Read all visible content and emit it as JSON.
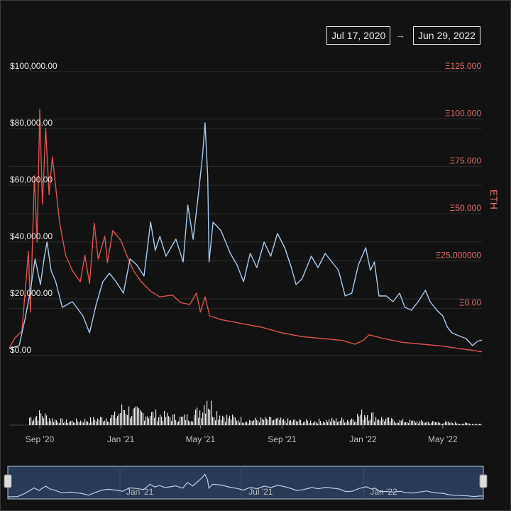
{
  "date_range": {
    "start": "Jul 17, 2020",
    "arrow": "→",
    "end": "Jun 29, 2022"
  },
  "colors": {
    "background": "#121212",
    "usd_line": "#a9c9ee",
    "eth_line": "#d9534f",
    "eth_axis_text": "#e06c6c",
    "volume": "#e8e8e8",
    "grid": "#2c2c2c"
  },
  "chart_data": {
    "type": "line",
    "title": "",
    "x_ticks": [
      "Sep '20",
      "Jan '21",
      "May '21",
      "Sep '21",
      "Jan '22",
      "May '22"
    ],
    "x_tick_dates": [
      "2020-09-01",
      "2021-01-01",
      "2021-05-01",
      "2021-09-01",
      "2022-01-01",
      "2022-05-01"
    ],
    "navigator_ticks": [
      "Jan '21",
      "Jul '21",
      "Jan '22"
    ],
    "navigator_tick_dates": [
      "2021-01-01",
      "2021-07-01",
      "2022-01-01"
    ],
    "xlim": [
      "2020-07-17",
      "2022-06-29"
    ],
    "left_axis": {
      "ticks": [
        "$0.00",
        "$20,000.00",
        "$40,000.00",
        "$60,000.00",
        "$80,000.00",
        "$100,000.00"
      ],
      "tick_values": [
        0,
        20000,
        40000,
        60000,
        80000,
        100000
      ],
      "ylim": [
        0,
        100000
      ]
    },
    "right_axis": {
      "label": "ETH",
      "ticks": [
        "Ξ0.00",
        "Ξ25.000000",
        "Ξ50.000",
        "Ξ75.000",
        "Ξ100.000",
        "Ξ125.000"
      ],
      "tick_values": [
        0,
        25,
        50,
        75,
        100,
        125
      ],
      "ylim": [
        -25,
        125
      ]
    },
    "series": [
      {
        "axis": "left",
        "points": [
          [
            "2020-07-17",
            2500
          ],
          [
            "2020-08-01",
            3500
          ],
          [
            "2020-08-10",
            13000
          ],
          [
            "2020-08-18",
            23000
          ],
          [
            "2020-08-25",
            34000
          ],
          [
            "2020-09-02",
            25000
          ],
          [
            "2020-09-08",
            35000
          ],
          [
            "2020-09-12",
            40000
          ],
          [
            "2020-09-18",
            30000
          ],
          [
            "2020-09-25",
            26000
          ],
          [
            "2020-10-05",
            17000
          ],
          [
            "2020-10-20",
            19000
          ],
          [
            "2020-11-05",
            14000
          ],
          [
            "2020-11-15",
            8000
          ],
          [
            "2020-11-25",
            18000
          ],
          [
            "2020-12-05",
            26000
          ],
          [
            "2020-12-15",
            29000
          ],
          [
            "2020-12-25",
            26000
          ],
          [
            "2021-01-05",
            22000
          ],
          [
            "2021-01-15",
            34000
          ],
          [
            "2021-01-25",
            32000
          ],
          [
            "2021-02-05",
            28000
          ],
          [
            "2021-02-15",
            47000
          ],
          [
            "2021-02-22",
            37000
          ],
          [
            "2021-03-01",
            42000
          ],
          [
            "2021-03-10",
            35000
          ],
          [
            "2021-03-25",
            41000
          ],
          [
            "2021-04-05",
            33000
          ],
          [
            "2021-04-12",
            53000
          ],
          [
            "2021-04-20",
            41000
          ],
          [
            "2021-04-27",
            55000
          ],
          [
            "2021-05-04",
            70000
          ],
          [
            "2021-05-08",
            82000
          ],
          [
            "2021-05-12",
            63000
          ],
          [
            "2021-05-14",
            33000
          ],
          [
            "2021-05-20",
            47000
          ],
          [
            "2021-06-01",
            44000
          ],
          [
            "2021-06-15",
            36000
          ],
          [
            "2021-06-25",
            32000
          ],
          [
            "2021-07-05",
            26000
          ],
          [
            "2021-07-15",
            36000
          ],
          [
            "2021-07-25",
            31000
          ],
          [
            "2021-08-05",
            40000
          ],
          [
            "2021-08-15",
            35000
          ],
          [
            "2021-08-25",
            43000
          ],
          [
            "2021-09-05",
            38000
          ],
          [
            "2021-09-15",
            31000
          ],
          [
            "2021-09-22",
            25000
          ],
          [
            "2021-10-01",
            27000
          ],
          [
            "2021-10-15",
            35000
          ],
          [
            "2021-10-25",
            31000
          ],
          [
            "2021-11-05",
            36000
          ],
          [
            "2021-11-15",
            33000
          ],
          [
            "2021-11-25",
            30000
          ],
          [
            "2021-12-05",
            21000
          ],
          [
            "2021-12-15",
            22000
          ],
          [
            "2021-12-25",
            32000
          ],
          [
            "2022-01-05",
            38000
          ],
          [
            "2022-01-12",
            30000
          ],
          [
            "2022-01-18",
            33000
          ],
          [
            "2022-01-25",
            21000
          ],
          [
            "2022-02-05",
            21000
          ],
          [
            "2022-02-15",
            19000
          ],
          [
            "2022-02-25",
            22000
          ],
          [
            "2022-03-05",
            17000
          ],
          [
            "2022-03-15",
            16000
          ],
          [
            "2022-03-25",
            19000
          ],
          [
            "2022-04-05",
            23000
          ],
          [
            "2022-04-12",
            19000
          ],
          [
            "2022-04-22",
            16000
          ],
          [
            "2022-05-01",
            14000
          ],
          [
            "2022-05-08",
            10000
          ],
          [
            "2022-05-15",
            8000
          ],
          [
            "2022-05-25",
            7000
          ],
          [
            "2022-06-05",
            6000
          ],
          [
            "2022-06-15",
            3500
          ],
          [
            "2022-06-22",
            5000
          ],
          [
            "2022-06-29",
            5500
          ]
        ]
      },
      {
        "axis": "right",
        "points": [
          [
            "2020-07-17",
            -21
          ],
          [
            "2020-07-25",
            -16
          ],
          [
            "2020-08-05",
            -12
          ],
          [
            "2020-08-15",
            30
          ],
          [
            "2020-08-18",
            -2
          ],
          [
            "2020-08-24",
            70
          ],
          [
            "2020-08-28",
            35
          ],
          [
            "2020-09-01",
            105
          ],
          [
            "2020-09-05",
            55
          ],
          [
            "2020-09-10",
            95
          ],
          [
            "2020-09-15",
            60
          ],
          [
            "2020-09-20",
            80
          ],
          [
            "2020-10-01",
            45
          ],
          [
            "2020-10-10",
            28
          ],
          [
            "2020-10-20",
            20
          ],
          [
            "2020-11-01",
            14
          ],
          [
            "2020-11-08",
            28
          ],
          [
            "2020-11-15",
            13
          ],
          [
            "2020-11-22",
            45
          ],
          [
            "2020-11-28",
            26
          ],
          [
            "2020-12-08",
            38
          ],
          [
            "2020-12-12",
            24
          ],
          [
            "2020-12-20",
            41
          ],
          [
            "2021-01-01",
            36
          ],
          [
            "2021-01-10",
            28
          ],
          [
            "2021-01-20",
            20
          ],
          [
            "2021-02-01",
            14
          ],
          [
            "2021-02-15",
            9
          ],
          [
            "2021-03-01",
            6
          ],
          [
            "2021-03-20",
            7
          ],
          [
            "2021-04-01",
            3
          ],
          [
            "2021-04-15",
            2
          ],
          [
            "2021-04-25",
            8
          ],
          [
            "2021-05-01",
            -2
          ],
          [
            "2021-05-08",
            6
          ],
          [
            "2021-05-15",
            -4
          ],
          [
            "2021-06-01",
            -6
          ],
          [
            "2021-07-01",
            -8
          ],
          [
            "2021-08-01",
            -10
          ],
          [
            "2021-09-01",
            -13
          ],
          [
            "2021-10-01",
            -15
          ],
          [
            "2021-11-01",
            -16
          ],
          [
            "2021-12-01",
            -17
          ],
          [
            "2021-12-20",
            -19
          ],
          [
            "2022-01-01",
            -17
          ],
          [
            "2022-01-10",
            -14
          ],
          [
            "2022-02-01",
            -16
          ],
          [
            "2022-03-01",
            -18
          ],
          [
            "2022-04-01",
            -19
          ],
          [
            "2022-05-01",
            -20
          ],
          [
            "2022-05-20",
            -21
          ],
          [
            "2022-06-10",
            -22
          ],
          [
            "2022-06-29",
            -23
          ]
        ]
      }
    ],
    "volume": {
      "ylim": [
        0,
        100
      ],
      "points": [
        [
          "2020-08-20",
          25
        ],
        [
          "2020-09-02",
          35
        ],
        [
          "2020-09-20",
          18
        ],
        [
          "2020-10-10",
          12
        ],
        [
          "2020-11-10",
          15
        ],
        [
          "2020-12-05",
          22
        ],
        [
          "2020-12-25",
          30
        ],
        [
          "2021-01-05",
          55
        ],
        [
          "2021-01-20",
          40
        ],
        [
          "2021-02-15",
          35
        ],
        [
          "2021-03-10",
          28
        ],
        [
          "2021-04-01",
          22
        ],
        [
          "2021-04-20",
          30
        ],
        [
          "2021-05-05",
          60
        ],
        [
          "2021-05-10",
          100
        ],
        [
          "2021-05-14",
          70
        ],
        [
          "2021-05-20",
          45
        ],
        [
          "2021-06-10",
          25
        ],
        [
          "2021-07-10",
          15
        ],
        [
          "2021-08-10",
          18
        ],
        [
          "2021-09-10",
          14
        ],
        [
          "2021-10-10",
          12
        ],
        [
          "2021-11-10",
          15
        ],
        [
          "2021-12-10",
          18
        ],
        [
          "2022-01-05",
          40
        ],
        [
          "2022-01-20",
          25
        ],
        [
          "2022-02-10",
          15
        ],
        [
          "2022-03-10",
          12
        ],
        [
          "2022-04-10",
          10
        ],
        [
          "2022-05-10",
          8
        ],
        [
          "2022-06-10",
          5
        ],
        [
          "2022-06-29",
          4
        ]
      ]
    },
    "grid": true
  }
}
